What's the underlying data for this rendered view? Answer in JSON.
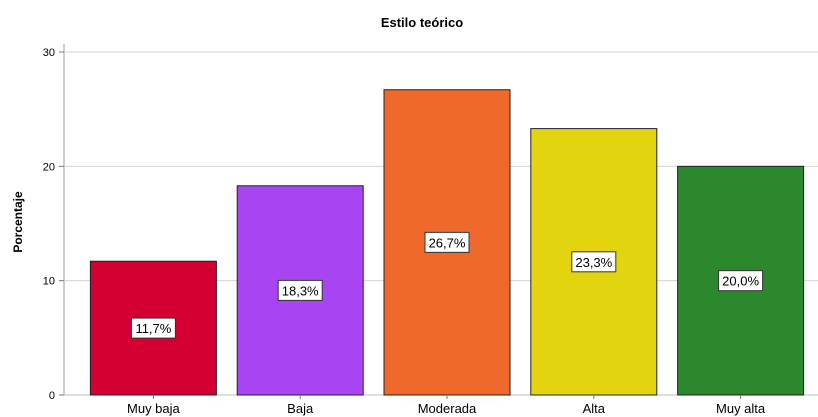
{
  "chart_data": {
    "type": "bar",
    "title": "Estilo teórico",
    "xlabel": "",
    "ylabel": "Porcentaje",
    "ylim": [
      0,
      30
    ],
    "yticks": [
      0,
      10,
      20,
      30
    ],
    "grid": true,
    "categories": [
      "Muy baja",
      "Baja",
      "Moderada",
      "Alta",
      "Muy alta"
    ],
    "values": [
      11.7,
      18.3,
      26.7,
      23.3,
      20.0
    ],
    "data_labels": [
      "11,7%",
      "18,3%",
      "26,7%",
      "23,3%",
      "20,0%"
    ],
    "colors": [
      "#d40032",
      "#a844f2",
      "#f0692c",
      "#e2d40f",
      "#2c882c"
    ]
  }
}
